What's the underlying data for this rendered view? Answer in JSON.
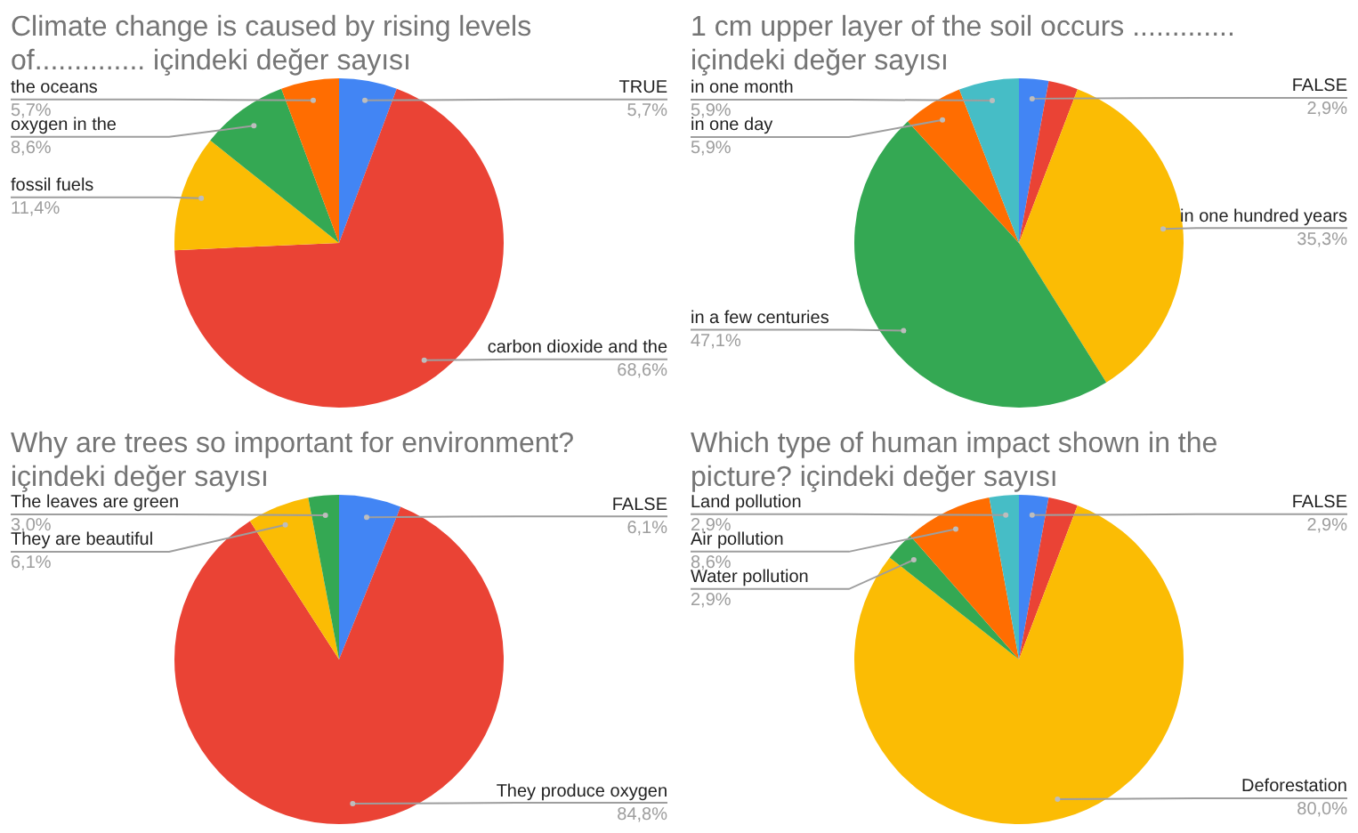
{
  "chart_data": [
    {
      "type": "pie",
      "title": "Climate change is caused by rising levels of.............. içindeki değer sayısı",
      "categories": [
        "TRUE",
        "carbon dioxide and the",
        "fossil fuels",
        "oxygen in the",
        "the oceans"
      ],
      "values": [
        5.7,
        68.6,
        11.4,
        8.6,
        5.7
      ],
      "colors": [
        "#4285f4",
        "#ea4335",
        "#fbbc04",
        "#34a853",
        "#ff6d01"
      ],
      "value_labels": [
        "5,7%",
        "68,6%",
        "11,4%",
        "8,6%",
        "5,7%"
      ]
    },
    {
      "type": "pie",
      "title": "1 cm  upper layer of the soil occurs ............. içindeki değer sayısı",
      "categories": [
        "FALSE",
        null,
        "in one hundred years",
        "in a few centuries",
        "in one day",
        "in one month"
      ],
      "values": [
        2.9,
        2.9,
        35.3,
        47.1,
        5.9,
        5.9
      ],
      "colors": [
        "#4285f4",
        "#ea4335",
        "#fbbc04",
        "#34a853",
        "#ff6d01",
        "#46bdc6"
      ],
      "value_labels": [
        "2,9%",
        null,
        "35,3%",
        "47,1%",
        "5,9%",
        "5,9%"
      ]
    },
    {
      "type": "pie",
      "title": "Why are trees so important for environment? içindeki değer sayısı",
      "categories": [
        "FALSE",
        "They produce oxygen",
        "They are beautiful",
        "The leaves are green"
      ],
      "values": [
        6.1,
        84.8,
        6.1,
        3.0
      ],
      "colors": [
        "#4285f4",
        "#ea4335",
        "#fbbc04",
        "#34a853"
      ],
      "value_labels": [
        "6,1%",
        "84,8%",
        "6,1%",
        "3,0%"
      ]
    },
    {
      "type": "pie",
      "title": "Which type of human impact shown in the picture? içindeki değer sayısı",
      "categories": [
        "FALSE",
        null,
        "Deforestation",
        "Water pollution",
        "Air pollution",
        "Land pollution"
      ],
      "values": [
        2.9,
        2.9,
        80.0,
        2.9,
        8.6,
        2.9
      ],
      "colors": [
        "#4285f4",
        "#ea4335",
        "#fbbc04",
        "#34a853",
        "#ff6d01",
        "#46bdc6"
      ],
      "value_labels": [
        "2,9%",
        null,
        "80,0%",
        "2,9%",
        "8,6%",
        "2,9%"
      ]
    }
  ]
}
